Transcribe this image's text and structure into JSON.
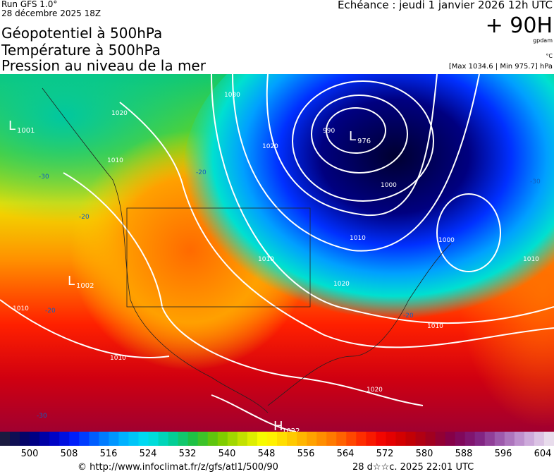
{
  "header": {
    "run": "Run GFS 1.0°",
    "run_date": "28 décembre 2025 18Z",
    "titles": [
      "Géopotentiel à 500hPa",
      "Température à 500hPa",
      "Pression au niveau de la mer"
    ],
    "valid_time": "Echéance : jeudi 1 janvier 2026 12h UTC",
    "lead_time": "+ 90H",
    "geopotential_unit": "gpdam",
    "temperature_unit": "°C",
    "pressure_range": "[Max 1034.6 | Min 975.7] hPa"
  },
  "map": {
    "centers": [
      {
        "letter": "L",
        "value": "1001"
      },
      {
        "letter": "L",
        "value": "1002"
      },
      {
        "letter": "L",
        "value": "976"
      },
      {
        "letter": "H",
        "value": "1022"
      }
    ],
    "contour_labels": [
      "1030",
      "1020",
      "1010",
      "1020",
      "990",
      "1000",
      "1000",
      "1010",
      "1020",
      "1010",
      "1010",
      "1010",
      "1010",
      "1010",
      "1020",
      "-20",
      "-30",
      "-20",
      "-20",
      "-20",
      "-30",
      "-30"
    ]
  },
  "colorbar": {
    "labels": [
      "500",
      "508",
      "516",
      "524",
      "532",
      "540",
      "548",
      "556",
      "564",
      "572",
      "580",
      "588",
      "596",
      "604"
    ]
  },
  "footer": {
    "source": "© http://www.infoclimat.fr/z/gfs/atl1/500/90",
    "generated": "28 d☆☆c. 2025 22:01 UTC"
  }
}
